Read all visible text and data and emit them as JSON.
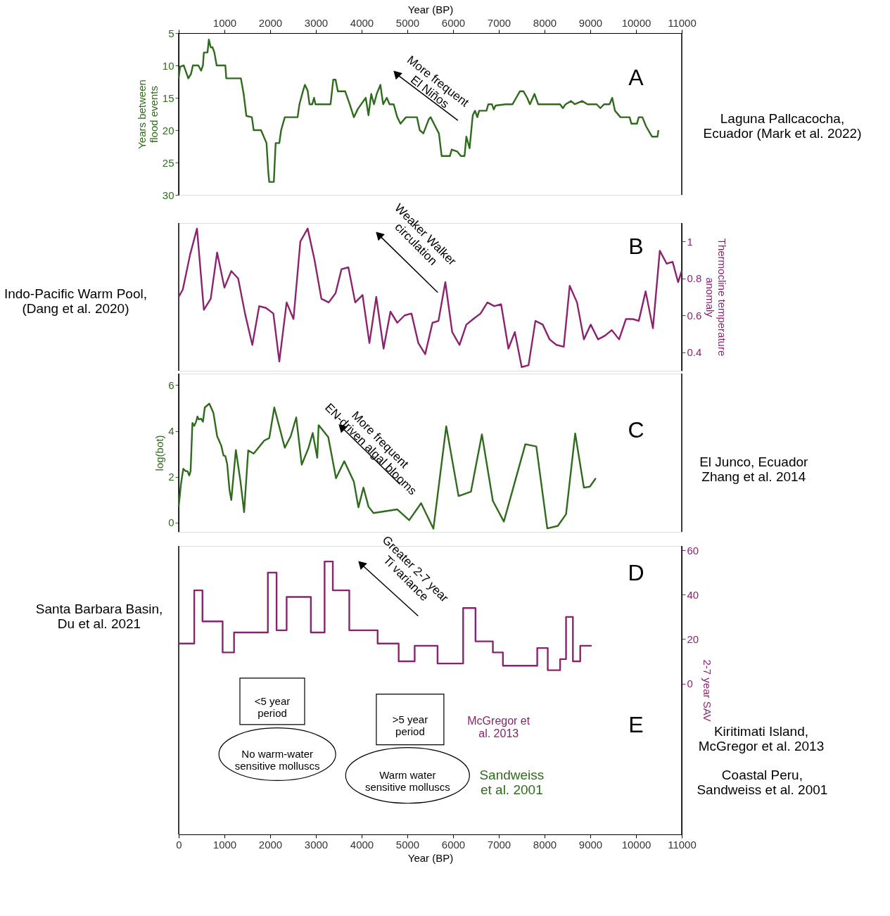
{
  "chart_data": [
    {
      "type": "line",
      "title": "A",
      "ylabel": "Years between\nflood events",
      "xlabel": "Year (BP)",
      "xlim": [
        0,
        11000
      ],
      "xticks": [
        {
          "value": 0,
          "label": null
        },
        1000,
        2000,
        3000,
        4000,
        5000,
        6000,
        7000,
        8000,
        9000,
        10000,
        11000
      ],
      "ylim": [
        30,
        5
      ],
      "yticks": [
        5,
        10,
        15,
        20,
        25,
        30
      ],
      "annotations": [
        "More frequent\nEl Niños",
        "Laguna Pallcacocha,\nEcuador (Mark et al. 2022)"
      ],
      "series": [
        {
          "color": "#2f6b1c",
          "x": [
            0,
            30,
            110,
            150,
            210,
            270,
            310,
            430,
            490,
            530,
            550,
            630,
            660,
            700,
            740,
            780,
            830,
            1020,
            1040,
            1360,
            1420,
            1480,
            1600,
            1640,
            1800,
            1920,
            1960,
            1980,
            2080,
            2120,
            2200,
            2240,
            2320,
            2600,
            2640,
            2720,
            2760,
            2820,
            2860,
            2920,
            2960,
            2990,
            3320,
            3380,
            3430,
            3480,
            3640,
            3740,
            3830,
            3920,
            4090,
            4150,
            4210,
            4270,
            4330,
            4410,
            4470,
            4550,
            4610,
            4700,
            4780,
            4850,
            4970,
            5210,
            5270,
            5350,
            5470,
            5510,
            5610,
            5690,
            5750,
            5930,
            5970,
            6090,
            6170,
            6250,
            6290,
            6360,
            6430,
            6480,
            6530,
            6570,
            6730,
            6770,
            6850,
            6890,
            6930,
            7150,
            7300,
            7380,
            7460,
            7540,
            7620,
            7680,
            7780,
            7860,
            7980,
            8020,
            8340,
            8400,
            8460,
            8580,
            8660,
            8820,
            8940,
            9140,
            9220,
            9300,
            9420,
            9480,
            9540,
            9660,
            9860,
            9900,
            10020,
            10060,
            10140,
            10220,
            10350,
            10470,
            10490
          ],
          "values": [
            12,
            10.2,
            10,
            10.8,
            12,
            11.3,
            10,
            10,
            10.8,
            10,
            8,
            8,
            6,
            7.2,
            7.2,
            8,
            10,
            10,
            12,
            12,
            14.4,
            17.8,
            18,
            20,
            20,
            22,
            26.6,
            28,
            28,
            22,
            22,
            20,
            18,
            18,
            16,
            13.9,
            13,
            13.9,
            16,
            16,
            15,
            16,
            16,
            12.2,
            12.2,
            14,
            14,
            16,
            18,
            16.7,
            15,
            17.7,
            14.4,
            16,
            14.4,
            13,
            16,
            15,
            16,
            16,
            18,
            19,
            18,
            18,
            20,
            20.5,
            18.3,
            18,
            19.4,
            20.5,
            24,
            24,
            23,
            23.3,
            24,
            24,
            21,
            22.8,
            17.7,
            17,
            18,
            17,
            17,
            16,
            16,
            16.8,
            16.2,
            16,
            16,
            15,
            14,
            14,
            15,
            16,
            14.4,
            16,
            16,
            16,
            16,
            16.6,
            16,
            15.5,
            16,
            15.5,
            16,
            16,
            16.6,
            16,
            16,
            15,
            17,
            18,
            18,
            19,
            19,
            18,
            18,
            19.4,
            21,
            21,
            20
          ]
        }
      ]
    },
    {
      "type": "line",
      "title": "B",
      "ylabel": "Thermocline temperature\nanomaly",
      "tick_labels": "y",
      "xlim": [
        0,
        11000
      ],
      "ylim": [
        0.3,
        1.1
      ],
      "yticks": [
        0.4,
        0.6,
        0.8,
        1
      ],
      "annotations": [
        "Weaker Walker\ncirculation",
        "Indo-Pacific Warm Pool,\n(Dang et al. 2020)"
      ],
      "series": [
        {
          "color": "#8b2371",
          "x": [
            0,
            90,
            250,
            400,
            550,
            700,
            840,
            1000,
            1150,
            1300,
            1450,
            1610,
            1760,
            1910,
            2070,
            2200,
            2360,
            2510,
            2660,
            2820,
            2970,
            3120,
            3280,
            3430,
            3560,
            3710,
            3860,
            4020,
            4170,
            4320,
            4480,
            4630,
            4780,
            4940,
            5090,
            5240,
            5390,
            5550,
            5680,
            5830,
            5980,
            6140,
            6290,
            6440,
            6600,
            6750,
            6900,
            7050,
            7210,
            7350,
            7500,
            7650,
            7800,
            7960,
            8110,
            8260,
            8420,
            8550,
            8710,
            8860,
            9010,
            9170,
            9320,
            9470,
            9630,
            9780,
            9930,
            10060,
            10210,
            10370,
            10520,
            10670,
            10800,
            10920,
            11000
          ],
          "values": [
            0.7,
            0.74,
            0.93,
            1.07,
            0.63,
            0.69,
            0.94,
            0.75,
            0.84,
            0.8,
            0.61,
            0.44,
            0.65,
            0.64,
            0.61,
            0.35,
            0.67,
            0.58,
            1.0,
            1.07,
            0.9,
            0.69,
            0.67,
            0.72,
            0.85,
            0.86,
            0.67,
            0.71,
            0.45,
            0.7,
            0.42,
            0.62,
            0.56,
            0.6,
            0.61,
            0.45,
            0.39,
            0.56,
            0.57,
            0.78,
            0.51,
            0.44,
            0.55,
            0.58,
            0.61,
            0.67,
            0.65,
            0.66,
            0.42,
            0.51,
            0.32,
            0.33,
            0.57,
            0.55,
            0.47,
            0.44,
            0.43,
            0.76,
            0.67,
            0.47,
            0.55,
            0.47,
            0.49,
            0.52,
            0.47,
            0.58,
            0.58,
            0.57,
            0.73,
            0.53,
            0.95,
            0.88,
            0.89,
            0.78,
            0.84
          ]
        }
      ]
    },
    {
      "type": "line",
      "title": "C",
      "ylabel": "log(bot)",
      "tick_labels": "y",
      "xlim": [
        0,
        11000
      ],
      "ylim": [
        -0.4,
        6.5
      ],
      "yticks": [
        0,
        2,
        4,
        6
      ],
      "annotations": [
        "More frequent\nEN-driven algal blooms",
        "El Junco, Ecuador\nZhang et al. 2014"
      ],
      "series": [
        {
          "color": "#2f6b1c",
          "x": [
            0,
            50,
            100,
            150,
            190,
            230,
            260,
            300,
            340,
            380,
            410,
            440,
            490,
            530,
            570,
            670,
            760,
            840,
            930,
            980,
            1020,
            1060,
            1110,
            1150,
            1250,
            1350,
            1430,
            1520,
            1640,
            1870,
            1980,
            2090,
            2320,
            2450,
            2570,
            2690,
            2840,
            2930,
            3030,
            3060,
            3270,
            3440,
            3620,
            3830,
            3930,
            4040,
            4150,
            4260,
            4780,
            5040,
            5300,
            5570,
            5850,
            6120,
            6390,
            6630,
            6870,
            7110,
            7580,
            7820,
            8060,
            8290,
            8470,
            8670,
            8860,
            8990,
            9120
          ],
          "values": [
            0.7,
            1.7,
            2.35,
            2.25,
            2.25,
            2.06,
            2.25,
            4.35,
            4.22,
            4.4,
            4.63,
            4.5,
            4.53,
            4.4,
            5.02,
            5.19,
            4.78,
            3.77,
            3.36,
            2.93,
            2.9,
            2.56,
            1.44,
            0.99,
            3.17,
            1.81,
            0.46,
            3.15,
            3.01,
            3.58,
            3.69,
            5.02,
            3.27,
            3.77,
            4.59,
            2.53,
            3.27,
            3.91,
            2.83,
            4.25,
            3.73,
            1.94,
            2.68,
            1.79,
            0.67,
            1.53,
            0.7,
            0.42,
            0.58,
            0.11,
            0.85,
            -0.26,
            4.2,
            1.16,
            1.35,
            3.85,
            0.95,
            0.05,
            3.42,
            3.32,
            -0.25,
            -0.14,
            0.37,
            3.89,
            1.53,
            1.57,
            1.94
          ]
        }
      ]
    },
    {
      "type": "step",
      "title": "D",
      "ylabel": "2-7 year SAV",
      "xlabel": "Year (BP)",
      "xlim": [
        0,
        11000
      ],
      "xticks": [
        0,
        1000,
        2000,
        3000,
        4000,
        5000,
        6000,
        7000,
        8000,
        9000,
        10000,
        11000
      ],
      "ylim": [
        -68,
        62
      ],
      "yticks": [
        0,
        20,
        40,
        60
      ],
      "annotations": [
        "Greater 2-7 year\nTi variance",
        "Santa Barbara Basin,\nDu et al. 2021",
        "E",
        "<5 year\nperiod",
        ">5 year\nperiod",
        "McGregor et\nal. 2013",
        "No warm-water\nsensitive molluscs",
        "Warm water\nsensitive molluscs",
        "Sandweiss\net al. 2001",
        "Kiritimati Island,\nMcGregor et al. 2013",
        "Coastal Peru,\nSandweiss et al. 2001"
      ],
      "series": [
        {
          "color": "#8b2371",
          "x": [
            0,
            340,
            520,
            960,
            1210,
            1950,
            2140,
            2360,
            2890,
            3190,
            3370,
            3730,
            4350,
            4810,
            5160,
            5660,
            6220,
            6490,
            6870,
            7090,
            7840,
            8070,
            8340,
            8470,
            8620,
            8780,
            9030
          ],
          "values": [
            18,
            42,
            28,
            14,
            23,
            50,
            24,
            39,
            23,
            55,
            42,
            24,
            18,
            10,
            17,
            9,
            34,
            19,
            14,
            8,
            16,
            6,
            11,
            30,
            10,
            17,
            17
          ]
        }
      ]
    }
  ]
}
